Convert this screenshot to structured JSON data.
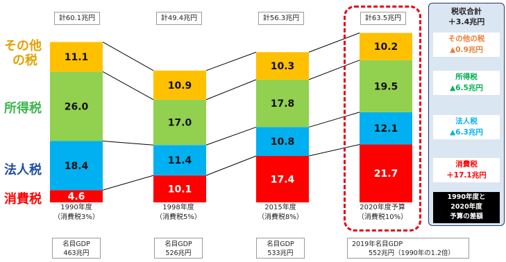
{
  "chart_data": {
    "type": "bar",
    "categories": [
      {
        "year": "1990年度",
        "rate": "（消費税3%）"
      },
      {
        "year": "1998年度",
        "rate": "（消費税5%）"
      },
      {
        "year": "2015年度",
        "rate": "（消費税8%）"
      },
      {
        "year": "2020年度予算",
        "rate": "（消費税10%）"
      }
    ],
    "series": [
      {
        "name": "消費税",
        "values": [
          4.6,
          10.1,
          17.4,
          21.7
        ],
        "color": "#ff0000"
      },
      {
        "name": "法人税",
        "values": [
          18.4,
          11.4,
          10.8,
          12.1
        ],
        "color": "#00b0f0"
      },
      {
        "name": "所得税",
        "values": [
          26.0,
          17.0,
          17.8,
          19.5
        ],
        "color": "#92d050"
      },
      {
        "name": "その他の税",
        "values": [
          11.1,
          10.9,
          10.3,
          10.2
        ],
        "color": "#ffc000"
      }
    ],
    "value_labels": [
      [
        "4.6",
        "10.1",
        "17.4",
        "21.7"
      ],
      [
        "18.4",
        "11.4",
        "10.8",
        "12.1"
      ],
      [
        "26.0",
        "17.0",
        "17.8",
        "19.5"
      ],
      [
        "11.1",
        "10.9",
        "10.3",
        "10.2"
      ]
    ],
    "totals": [
      "計60.1兆円",
      "計49.4兆円",
      "計56.3兆円",
      "計63.5兆円"
    ],
    "gdp": [
      {
        "line1": "名目GDP",
        "line2": "463兆円"
      },
      {
        "line1": "名目GDP",
        "line2": "526兆円"
      },
      {
        "line1": "名目GDP",
        "line2": "533兆円"
      },
      {
        "line1": "2019年名目GDP",
        "line2": "552兆円（1990年の1.2倍）"
      }
    ],
    "left_labels": {
      "other_l1": "その他",
      "other_l2": "の税",
      "income": "所得税",
      "corporate": "法人税",
      "consumption": "消費税"
    },
    "left_label_colors": {
      "other": "#e4a100",
      "income": "#3cb44b",
      "corporate": "#1f4e9a",
      "consumption": "#ff0000"
    },
    "diff_panel": {
      "title": "税収合計",
      "total": "＋3.4兆円",
      "other_name": "その他の税",
      "other_value": "▲0.9兆円",
      "income_name": "所得税",
      "income_value": "▲6.5兆円",
      "corporate_name": "法人税",
      "corporate_value": "▲6.3兆円",
      "consumption_name": "消費税",
      "consumption_value": "＋17.1兆円",
      "note_l1": "1990年度と",
      "note_l2": "2020年度",
      "note_l3": "予算の差額"
    },
    "diff_colors": {
      "other": "#ed7d31",
      "income": "#00b050",
      "corporate": "#00b0f0",
      "consumption": "#ff0000"
    }
  }
}
